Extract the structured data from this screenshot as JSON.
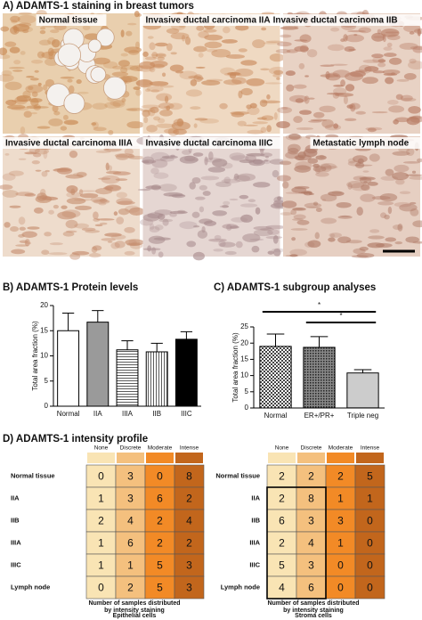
{
  "panel_a": {
    "title": "A) ADAMTS-1 staining in breast tumors",
    "images": [
      {
        "label": "Normal tissue"
      },
      {
        "label": "Invasive ductal carcinoma IIA"
      },
      {
        "label": "Invasive ductal carcinoma IIB"
      },
      {
        "label": "Invasive ductal carcinoma IIIA"
      },
      {
        "label": "Invasive ductal carcinoma IIIC"
      },
      {
        "label": "Metastatic lymph node"
      }
    ]
  },
  "chart_data": [
    {
      "type": "bar",
      "title": "B) ADAMTS-1 Protein levels",
      "y_label": "Total area fraction (%)",
      "categories": [
        "Normal",
        "IIA",
        "IIIA",
        "IIB",
        "IIIC"
      ],
      "values": [
        15,
        16.7,
        11.2,
        10.8,
        13.3
      ],
      "errors": [
        3.5,
        2.3,
        1.8,
        1.7,
        1.5
      ],
      "fills": [
        "#ffffff",
        "#9a9a9a",
        "hlines",
        "vlines",
        "#000000"
      ],
      "ylim": [
        0,
        20
      ],
      "yticks": [
        0,
        5,
        10,
        15,
        20
      ]
    },
    {
      "type": "bar",
      "title": "C) ADAMTS-1 subgroup analyses",
      "y_label": "Total area fraction (%)",
      "categories": [
        "Normal",
        "ER+/PR+",
        "Triple neg"
      ],
      "values": [
        19,
        18.7,
        10.8
      ],
      "errors": [
        3.8,
        3.3,
        1
      ],
      "fills": [
        "checker",
        "dense",
        "hlines-fine"
      ],
      "ylim": [
        0,
        25
      ],
      "yticks": [
        0,
        5,
        10,
        15,
        20,
        25
      ],
      "annotations": [
        {
          "text": "*",
          "between": [
            "Normal",
            "Triple neg"
          ]
        },
        {
          "text": "*",
          "between": [
            "ER+/PR+",
            "Triple neg"
          ]
        }
      ]
    }
  ],
  "panel_d": {
    "title": "D) ADAMTS-1 intensity profile",
    "columns": [
      "None",
      "Discrete",
      "Moderate",
      "Intense"
    ],
    "colors": [
      "#f9e4b4",
      "#f4c07e",
      "#f28a26",
      "#c2661c"
    ],
    "row_labels": [
      "Normal tissue",
      "IIA",
      "IIB",
      "IIIA",
      "IIIC",
      "Lymph node"
    ],
    "caption_lines": [
      "Number of samples distributed",
      "by intensity staining"
    ],
    "tables": [
      {
        "name": "Epithelial cells",
        "rows": [
          [
            0,
            3,
            0,
            8
          ],
          [
            1,
            3,
            6,
            2
          ],
          [
            2,
            4,
            2,
            4
          ],
          [
            1,
            6,
            2,
            2
          ],
          [
            1,
            1,
            5,
            3
          ],
          [
            0,
            2,
            5,
            3
          ]
        ]
      },
      {
        "name": "Stroma cells",
        "rows": [
          [
            2,
            2,
            2,
            5
          ],
          [
            2,
            8,
            1,
            1
          ],
          [
            6,
            3,
            3,
            0
          ],
          [
            2,
            4,
            1,
            0
          ],
          [
            5,
            3,
            0,
            0
          ],
          [
            4,
            6,
            0,
            0
          ]
        ]
      }
    ]
  }
}
